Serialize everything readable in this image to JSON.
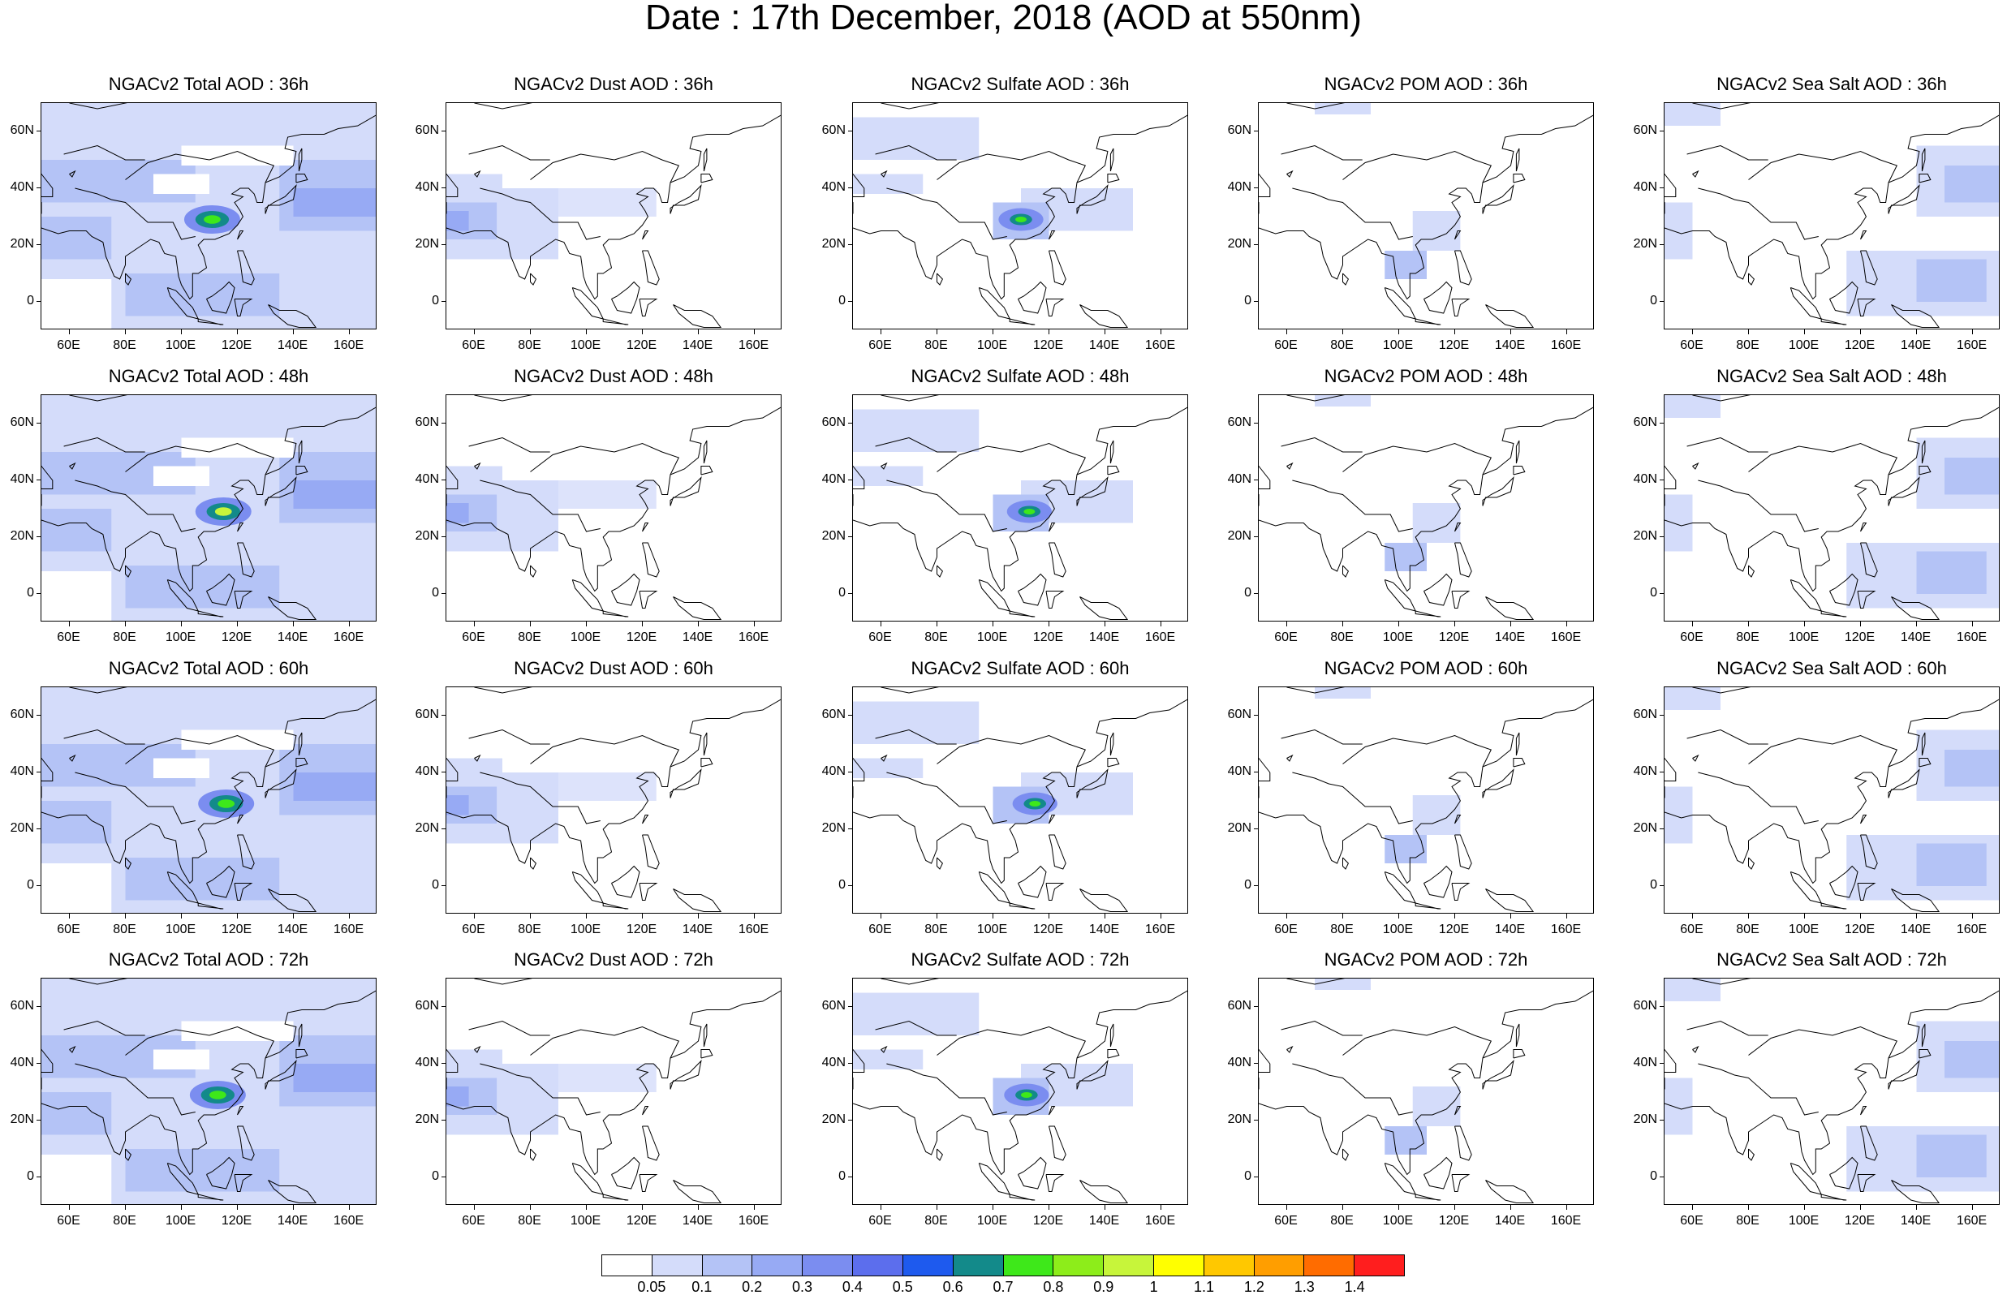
{
  "title": "Date : 17th December, 2018 (AOD at 550nm)",
  "panels": [
    [
      "NGACv2 Total AOD : 36h",
      "NGACv2 Dust AOD : 36h",
      "NGACv2 Sulfate AOD : 36h",
      "NGACv2 POM AOD : 36h",
      "NGACv2 Sea Salt AOD : 36h"
    ],
    [
      "NGACv2 Total AOD : 48h",
      "NGACv2 Dust AOD : 48h",
      "NGACv2 Sulfate AOD : 48h",
      "NGACv2 POM AOD : 48h",
      "NGACv2 Sea Salt AOD : 48h"
    ],
    [
      "NGACv2 Total AOD : 60h",
      "NGACv2 Dust AOD : 60h",
      "NGACv2 Sulfate AOD : 60h",
      "NGACv2 POM AOD : 60h",
      "NGACv2 Sea Salt AOD : 60h"
    ],
    [
      "NGACv2 Total AOD : 72h",
      "NGACv2 Dust AOD : 72h",
      "NGACv2 Sulfate AOD : 72h",
      "NGACv2 POM AOD : 72h",
      "NGACv2 Sea Salt  AOD : 72h"
    ]
  ],
  "chart_data": {
    "type": "heatmap",
    "title": "Date : 17th December, 2018 (AOD at 550nm)",
    "layout": "4 rows (forecast hours) x 5 columns (species)",
    "species": [
      "Total",
      "Dust",
      "Sulfate",
      "POM",
      "Sea Salt"
    ],
    "forecast_hours": [
      "36h",
      "48h",
      "60h",
      "72h"
    ],
    "x_axis": {
      "ticks": [
        60,
        80,
        100,
        120,
        140,
        160
      ],
      "tick_labels": [
        "60E",
        "80E",
        "100E",
        "120E",
        "140E",
        "160E"
      ],
      "range": [
        50,
        170
      ]
    },
    "y_axis": {
      "ticks": [
        0,
        20,
        40,
        60
      ],
      "tick_labels": [
        "0",
        "20N",
        "40N",
        "60N"
      ],
      "range": [
        -10,
        70
      ]
    },
    "colorbar": {
      "levels": [
        0.05,
        0.1,
        0.2,
        0.3,
        0.4,
        0.5,
        0.6,
        0.7,
        0.8,
        0.9,
        1,
        1.1,
        1.2,
        1.3,
        1.4
      ],
      "labels": [
        "0.05",
        "0.1",
        "0.2",
        "0.3",
        "0.4",
        "0.5",
        "0.6",
        "0.7",
        "0.8",
        "0.9",
        "1",
        "1.1",
        "1.2",
        "1.3",
        "1.4"
      ],
      "colors": [
        "#ffffff",
        "#d4dcfa",
        "#b4c3f6",
        "#97aaf4",
        "#7b8df0",
        "#5c6eed",
        "#1e5aee",
        "#138a8a",
        "#3ee81a",
        "#8ded1a",
        "#c7f53a",
        "#ffff00",
        "#ffc800",
        "#ff9e00",
        "#ff6c00",
        "#ff1e1e"
      ]
    },
    "features": {
      "Total": [
        {
          "lon": [
            108,
            115
          ],
          "lat": [
            25,
            32
          ],
          "max": 0.9
        },
        {
          "lon": [
            110,
            122
          ],
          "lat": [
            25,
            32
          ],
          "max": 1.1
        },
        {
          "lon": [
            108,
            124
          ],
          "lat": [
            25,
            35
          ],
          "max": 0.9
        },
        {
          "lon": [
            108,
            118
          ],
          "lat": [
            26,
            32
          ],
          "max": 0.9
        }
      ],
      "Sulfate": [
        {
          "lon": [
            105,
            115
          ],
          "lat": [
            25,
            32
          ],
          "max": 0.8
        },
        {
          "lon": [
            105,
            118
          ],
          "lat": [
            27,
            32
          ],
          "max": 0.8
        },
        {
          "lon": [
            105,
            125
          ],
          "lat": [
            25,
            33
          ],
          "max": 0.8
        },
        {
          "lon": [
            105,
            118
          ],
          "lat": [
            26,
            30
          ],
          "max": 0.7
        }
      ],
      "Dust": "low values 0.05-0.3 over Arabian Peninsula, Iran, Pakistan, and NW India",
      "POM": "low values 0.05-0.2 over southern China and Indochina",
      "Sea Salt": "low values 0.05-0.3 over western Pacific and northern oceans"
    }
  }
}
